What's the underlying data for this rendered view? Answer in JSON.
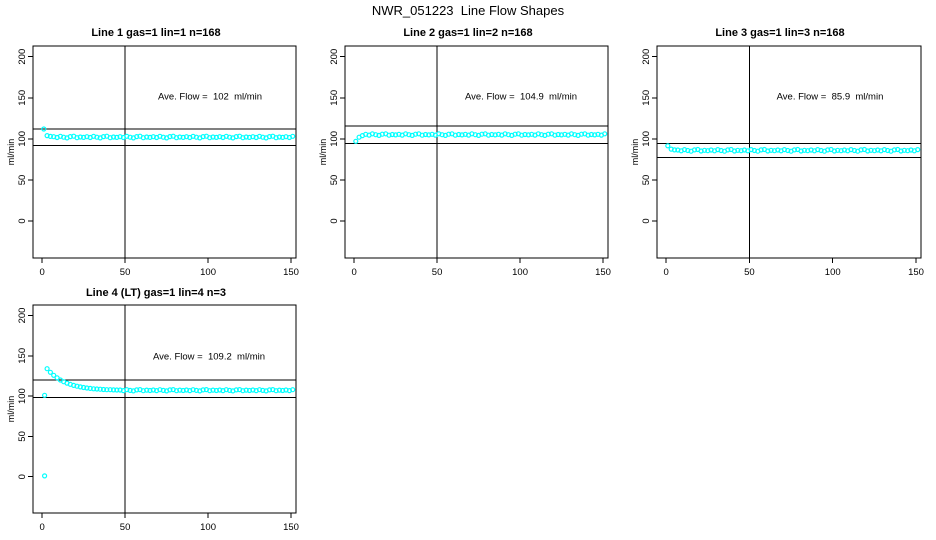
{
  "title": "NWR_051223  Line Flow Shapes",
  "colors": {
    "marker": "#00FFFF",
    "axis": "#000000",
    "background": "#FFFFFF"
  },
  "chart_data": [
    {
      "type": "scatter",
      "title": "Line 1 gas=1 lin=1 n=168",
      "annotation": "Ave. Flow =  102  ml/min",
      "ave_flow": 102,
      "ylabel": "ml/min",
      "xlim": [
        -5.5,
        153
      ],
      "ylim": [
        -45,
        213
      ],
      "xticks": [
        0,
        50,
        100,
        150
      ],
      "yticks": [
        0,
        50,
        100,
        150,
        200
      ],
      "vline_x": 50,
      "hlines": [
        112.2,
        91.8
      ],
      "points": [
        [
          1,
          112
        ],
        [
          3,
          104
        ],
        [
          5,
          103
        ],
        [
          7,
          102.6
        ],
        [
          9,
          101.6
        ],
        [
          11,
          103.1
        ],
        [
          13,
          102
        ],
        [
          15,
          101.2
        ],
        [
          17,
          102.7
        ],
        [
          19,
          103.2
        ],
        [
          21,
          101.4
        ],
        [
          23,
          102.3
        ],
        [
          25,
          101.8
        ],
        [
          27,
          102.6
        ],
        [
          29,
          101.6
        ],
        [
          31,
          103.1
        ],
        [
          33,
          102
        ],
        [
          35,
          101.2
        ],
        [
          37,
          102.7
        ],
        [
          39,
          103.2
        ],
        [
          41,
          101.4
        ],
        [
          43,
          102.3
        ],
        [
          45,
          101.8
        ],
        [
          47,
          102.6
        ],
        [
          49,
          101.6
        ],
        [
          51,
          103.1
        ],
        [
          53,
          102
        ],
        [
          55,
          101.2
        ],
        [
          57,
          102.7
        ],
        [
          59,
          103.2
        ],
        [
          61,
          101.4
        ],
        [
          63,
          102.3
        ],
        [
          65,
          101.8
        ],
        [
          67,
          102.6
        ],
        [
          69,
          101.6
        ],
        [
          71,
          103.1
        ],
        [
          73,
          102
        ],
        [
          75,
          101.2
        ],
        [
          77,
          102.7
        ],
        [
          79,
          103.2
        ],
        [
          81,
          101.4
        ],
        [
          83,
          102.3
        ],
        [
          85,
          101.8
        ],
        [
          87,
          102.6
        ],
        [
          89,
          101.6
        ],
        [
          91,
          103.1
        ],
        [
          93,
          102
        ],
        [
          95,
          101.2
        ],
        [
          97,
          102.7
        ],
        [
          99,
          103.2
        ],
        [
          101,
          101.4
        ],
        [
          103,
          102.3
        ],
        [
          105,
          101.8
        ],
        [
          107,
          102.6
        ],
        [
          109,
          101.6
        ],
        [
          111,
          103.1
        ],
        [
          113,
          102
        ],
        [
          115,
          101.2
        ],
        [
          117,
          102.7
        ],
        [
          119,
          103.2
        ],
        [
          121,
          101.4
        ],
        [
          123,
          102.3
        ],
        [
          125,
          101.8
        ],
        [
          127,
          102.6
        ],
        [
          129,
          101.6
        ],
        [
          131,
          103.1
        ],
        [
          133,
          102
        ],
        [
          135,
          101.2
        ],
        [
          137,
          102.7
        ],
        [
          139,
          103.2
        ],
        [
          141,
          101.4
        ],
        [
          143,
          102.3
        ],
        [
          145,
          101.8
        ],
        [
          147,
          102.6
        ],
        [
          149,
          101.6
        ],
        [
          151,
          103.1
        ]
      ]
    },
    {
      "type": "scatter",
      "title": "Line 2 gas=1 lin=2 n=168",
      "annotation": "Ave. Flow =  104.9  ml/min",
      "ave_flow": 104.9,
      "ylabel": "ml/min",
      "xlim": [
        -5.5,
        153
      ],
      "ylim": [
        -45,
        213
      ],
      "xticks": [
        0,
        50,
        100,
        150
      ],
      "yticks": [
        0,
        50,
        100,
        150,
        200
      ],
      "vline_x": 50,
      "hlines": [
        115.4,
        94.4
      ],
      "points": [
        [
          1,
          97
        ],
        [
          3,
          102
        ],
        [
          5,
          104
        ],
        [
          7,
          105.6
        ],
        [
          9,
          104.6
        ],
        [
          11,
          106.1
        ],
        [
          13,
          105
        ],
        [
          15,
          104.2
        ],
        [
          17,
          105.7
        ],
        [
          19,
          106.2
        ],
        [
          21,
          104.4
        ],
        [
          23,
          105.3
        ],
        [
          25,
          104.8
        ],
        [
          27,
          105.6
        ],
        [
          29,
          104.6
        ],
        [
          31,
          106.1
        ],
        [
          33,
          105
        ],
        [
          35,
          104.2
        ],
        [
          37,
          105.7
        ],
        [
          39,
          106.2
        ],
        [
          41,
          104.4
        ],
        [
          43,
          105.3
        ],
        [
          45,
          104.8
        ],
        [
          47,
          105.6
        ],
        [
          49,
          104.6
        ],
        [
          51,
          106.1
        ],
        [
          53,
          105
        ],
        [
          55,
          104.2
        ],
        [
          57,
          105.7
        ],
        [
          59,
          106.2
        ],
        [
          61,
          104.4
        ],
        [
          63,
          105.3
        ],
        [
          65,
          104.8
        ],
        [
          67,
          105.6
        ],
        [
          69,
          104.6
        ],
        [
          71,
          106.1
        ],
        [
          73,
          105
        ],
        [
          75,
          104.2
        ],
        [
          77,
          105.7
        ],
        [
          79,
          106.2
        ],
        [
          81,
          104.4
        ],
        [
          83,
          105.3
        ],
        [
          85,
          104.8
        ],
        [
          87,
          105.6
        ],
        [
          89,
          104.6
        ],
        [
          91,
          106.1
        ],
        [
          93,
          105
        ],
        [
          95,
          104.2
        ],
        [
          97,
          105.7
        ],
        [
          99,
          106.2
        ],
        [
          101,
          104.4
        ],
        [
          103,
          105.3
        ],
        [
          105,
          104.8
        ],
        [
          107,
          105.6
        ],
        [
          109,
          104.6
        ],
        [
          111,
          106.1
        ],
        [
          113,
          105
        ],
        [
          115,
          104.2
        ],
        [
          117,
          105.7
        ],
        [
          119,
          106.2
        ],
        [
          121,
          104.4
        ],
        [
          123,
          105.3
        ],
        [
          125,
          104.8
        ],
        [
          127,
          105.6
        ],
        [
          129,
          104.6
        ],
        [
          131,
          106.1
        ],
        [
          133,
          105
        ],
        [
          135,
          104.2
        ],
        [
          137,
          105.7
        ],
        [
          139,
          106.2
        ],
        [
          141,
          104.4
        ],
        [
          143,
          105.3
        ],
        [
          145,
          104.8
        ],
        [
          147,
          105.6
        ],
        [
          149,
          104.6
        ],
        [
          151,
          106.1
        ]
      ]
    },
    {
      "type": "scatter",
      "title": "Line 3 gas=1 lin=3 n=168",
      "annotation": "Ave. Flow =  85.9  ml/min",
      "ave_flow": 85.9,
      "ylabel": "ml/min",
      "xlim": [
        -5.5,
        153
      ],
      "ylim": [
        -45,
        213
      ],
      "xticks": [
        0,
        50,
        100,
        150
      ],
      "yticks": [
        0,
        50,
        100,
        150,
        200
      ],
      "vline_x": 50,
      "hlines": [
        94.5,
        77.3
      ],
      "points": [
        [
          1,
          91.5
        ],
        [
          3,
          87.5
        ],
        [
          5,
          86.5
        ],
        [
          7,
          86.4
        ],
        [
          9,
          85.4
        ],
        [
          11,
          86.9
        ],
        [
          13,
          85.8
        ],
        [
          15,
          85
        ],
        [
          17,
          86.5
        ],
        [
          19,
          87
        ],
        [
          21,
          85.2
        ],
        [
          23,
          86.1
        ],
        [
          25,
          85.6
        ],
        [
          27,
          86.4
        ],
        [
          29,
          85.4
        ],
        [
          31,
          86.9
        ],
        [
          33,
          85.8
        ],
        [
          35,
          85
        ],
        [
          37,
          86.5
        ],
        [
          39,
          87
        ],
        [
          41,
          85.2
        ],
        [
          43,
          86.1
        ],
        [
          45,
          85.6
        ],
        [
          47,
          86.4
        ],
        [
          49,
          85.4
        ],
        [
          51,
          86.9
        ],
        [
          53,
          85.8
        ],
        [
          55,
          85
        ],
        [
          57,
          86.5
        ],
        [
          59,
          87
        ],
        [
          61,
          85.2
        ],
        [
          63,
          86.1
        ],
        [
          65,
          85.6
        ],
        [
          67,
          86.4
        ],
        [
          69,
          85.4
        ],
        [
          71,
          86.9
        ],
        [
          73,
          85.8
        ],
        [
          75,
          85
        ],
        [
          77,
          86.5
        ],
        [
          79,
          87
        ],
        [
          81,
          85.2
        ],
        [
          83,
          86.1
        ],
        [
          85,
          85.6
        ],
        [
          87,
          86.4
        ],
        [
          89,
          85.4
        ],
        [
          91,
          86.9
        ],
        [
          93,
          85.8
        ],
        [
          95,
          85
        ],
        [
          97,
          86.5
        ],
        [
          99,
          87
        ],
        [
          101,
          85.2
        ],
        [
          103,
          86.1
        ],
        [
          105,
          85.6
        ],
        [
          107,
          86.4
        ],
        [
          109,
          85.4
        ],
        [
          111,
          86.9
        ],
        [
          113,
          85.8
        ],
        [
          115,
          85
        ],
        [
          117,
          86.5
        ],
        [
          119,
          87
        ],
        [
          121,
          85.2
        ],
        [
          123,
          86.1
        ],
        [
          125,
          85.6
        ],
        [
          127,
          86.4
        ],
        [
          129,
          85.4
        ],
        [
          131,
          86.9
        ],
        [
          133,
          85.8
        ],
        [
          135,
          85
        ],
        [
          137,
          86.5
        ],
        [
          139,
          87
        ],
        [
          141,
          85.2
        ],
        [
          143,
          86.1
        ],
        [
          145,
          85.6
        ],
        [
          147,
          86.4
        ],
        [
          149,
          85.4
        ],
        [
          151,
          86.9
        ]
      ]
    },
    {
      "type": "scatter",
      "title": "Line 4 (LT) gas=1 lin=4 n=3",
      "annotation": "Ave. Flow =  109.2  ml/min",
      "ave_flow": 109.2,
      "ylabel": "ml/min",
      "xlim": [
        -5.5,
        153
      ],
      "ylim": [
        -45,
        213
      ],
      "xticks": [
        0,
        50,
        100,
        150
      ],
      "yticks": [
        0,
        50,
        100,
        150,
        200
      ],
      "vline_x": 50,
      "hlines": [
        120.1,
        98.3
      ],
      "points": [
        [
          1.5,
          101
        ],
        [
          1.5,
          1
        ],
        [
          3,
          134
        ],
        [
          5,
          129.5
        ],
        [
          7,
          125.8
        ],
        [
          9,
          122.7
        ],
        [
          11,
          120
        ],
        [
          13,
          117.9
        ],
        [
          15,
          116.1
        ],
        [
          17,
          114.6
        ],
        [
          19,
          113.3
        ],
        [
          21,
          112.3
        ],
        [
          23,
          111.4
        ],
        [
          25,
          110.7
        ],
        [
          27,
          110.1
        ],
        [
          29,
          109.5
        ],
        [
          31,
          109.1
        ],
        [
          33,
          108.8
        ],
        [
          35,
          108.5
        ],
        [
          37,
          108.2
        ],
        [
          39,
          108
        ],
        [
          41,
          107.9
        ],
        [
          43,
          107.7
        ],
        [
          45,
          107.6
        ],
        [
          47,
          107.6
        ],
        [
          49,
          106.8
        ],
        [
          51,
          108
        ],
        [
          53,
          107.1
        ],
        [
          55,
          106.5
        ],
        [
          57,
          107.7
        ],
        [
          59,
          108.1
        ],
        [
          61,
          106.7
        ],
        [
          63,
          107.4
        ],
        [
          65,
          107
        ],
        [
          67,
          107.6
        ],
        [
          69,
          106.8
        ],
        [
          71,
          108
        ],
        [
          73,
          107.1
        ],
        [
          75,
          106.5
        ],
        [
          77,
          107.7
        ],
        [
          79,
          108.1
        ],
        [
          81,
          106.7
        ],
        [
          83,
          107.4
        ],
        [
          85,
          107
        ],
        [
          87,
          107.6
        ],
        [
          89,
          106.8
        ],
        [
          91,
          108
        ],
        [
          93,
          107.1
        ],
        [
          95,
          106.5
        ],
        [
          97,
          107.7
        ],
        [
          99,
          108.1
        ],
        [
          101,
          106.7
        ],
        [
          103,
          107.4
        ],
        [
          105,
          107
        ],
        [
          107,
          107.6
        ],
        [
          109,
          106.8
        ],
        [
          111,
          108
        ],
        [
          113,
          107.1
        ],
        [
          115,
          106.5
        ],
        [
          117,
          107.7
        ],
        [
          119,
          108.1
        ],
        [
          121,
          106.7
        ],
        [
          123,
          107.4
        ],
        [
          125,
          107
        ],
        [
          127,
          107.6
        ],
        [
          129,
          106.8
        ],
        [
          131,
          108
        ],
        [
          133,
          107.1
        ],
        [
          135,
          106.5
        ],
        [
          137,
          107.7
        ],
        [
          139,
          108.1
        ],
        [
          141,
          106.7
        ],
        [
          143,
          107.4
        ],
        [
          145,
          107
        ],
        [
          147,
          107.6
        ],
        [
          149,
          106.8
        ],
        [
          151,
          108
        ]
      ]
    }
  ]
}
